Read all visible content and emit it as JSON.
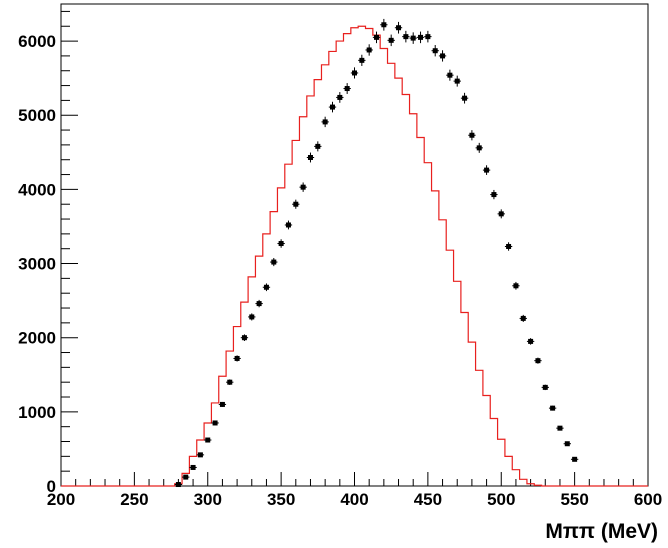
{
  "chart_data": {
    "type": "histogram",
    "xlabel": "Mππ (MeV)",
    "ylabel": "",
    "xlim": [
      200,
      600
    ],
    "ylim": [
      0,
      6500
    ],
    "x_ticks": [
      200,
      250,
      300,
      350,
      400,
      450,
      500,
      550,
      600
    ],
    "x_tick_labels": [
      "200",
      "250",
      "300",
      "350",
      "400",
      "450",
      "500",
      "550",
      "600"
    ],
    "y_ticks": [
      0,
      1000,
      2000,
      3000,
      4000,
      5000,
      6000
    ],
    "y_tick_labels": [
      "0",
      "1000",
      "2000",
      "3000",
      "4000",
      "5000",
      "6000"
    ],
    "grid": false,
    "legend": "none",
    "series": [
      {
        "style": "step",
        "color": "#e8201e",
        "bin_width": 5,
        "x": [
          280,
          285,
          290,
          295,
          300,
          305,
          310,
          315,
          320,
          325,
          330,
          335,
          340,
          345,
          350,
          355,
          360,
          365,
          370,
          375,
          380,
          385,
          390,
          395,
          400,
          405,
          410,
          415,
          420,
          425,
          430,
          435,
          440,
          445,
          450,
          455,
          460,
          465,
          470,
          475,
          480,
          485,
          490,
          495,
          500,
          505,
          510,
          515,
          520,
          525,
          530
        ],
        "values": [
          30,
          170,
          400,
          620,
          850,
          1120,
          1480,
          1820,
          2150,
          2480,
          2820,
          3100,
          3400,
          3700,
          4020,
          4340,
          4660,
          4980,
          5260,
          5480,
          5680,
          5860,
          6000,
          6100,
          6180,
          6200,
          6170,
          6080,
          5900,
          5700,
          5500,
          5280,
          5020,
          4700,
          4360,
          3980,
          3590,
          3180,
          2760,
          2340,
          1940,
          1560,
          1220,
          910,
          630,
          400,
          220,
          90,
          30,
          10,
          0
        ]
      },
      {
        "style": "points",
        "color": "#000000",
        "bin_width": 5,
        "x": [
          280,
          285,
          290,
          295,
          300,
          305,
          310,
          315,
          320,
          325,
          330,
          335,
          340,
          345,
          350,
          355,
          360,
          365,
          370,
          375,
          380,
          385,
          390,
          395,
          400,
          405,
          410,
          415,
          420,
          425,
          430,
          435,
          440,
          445,
          450,
          455,
          460,
          465,
          470,
          475,
          480,
          485,
          490,
          495,
          500,
          505,
          510,
          515,
          520,
          525,
          530,
          535,
          540,
          545,
          550
        ],
        "values": [
          20,
          120,
          250,
          420,
          620,
          850,
          1100,
          1400,
          1720,
          2000,
          2280,
          2460,
          2680,
          3020,
          3270,
          3520,
          3800,
          4030,
          4430,
          4580,
          4910,
          5110,
          5240,
          5360,
          5570,
          5740,
          5880,
          6050,
          6220,
          6010,
          6180,
          6060,
          6040,
          6050,
          6060,
          5870,
          5800,
          5540,
          5460,
          5230,
          4730,
          4560,
          4260,
          3930,
          3670,
          3230,
          2700,
          2260,
          1950,
          1690,
          1330,
          1050,
          780,
          570,
          360
        ]
      }
    ]
  }
}
